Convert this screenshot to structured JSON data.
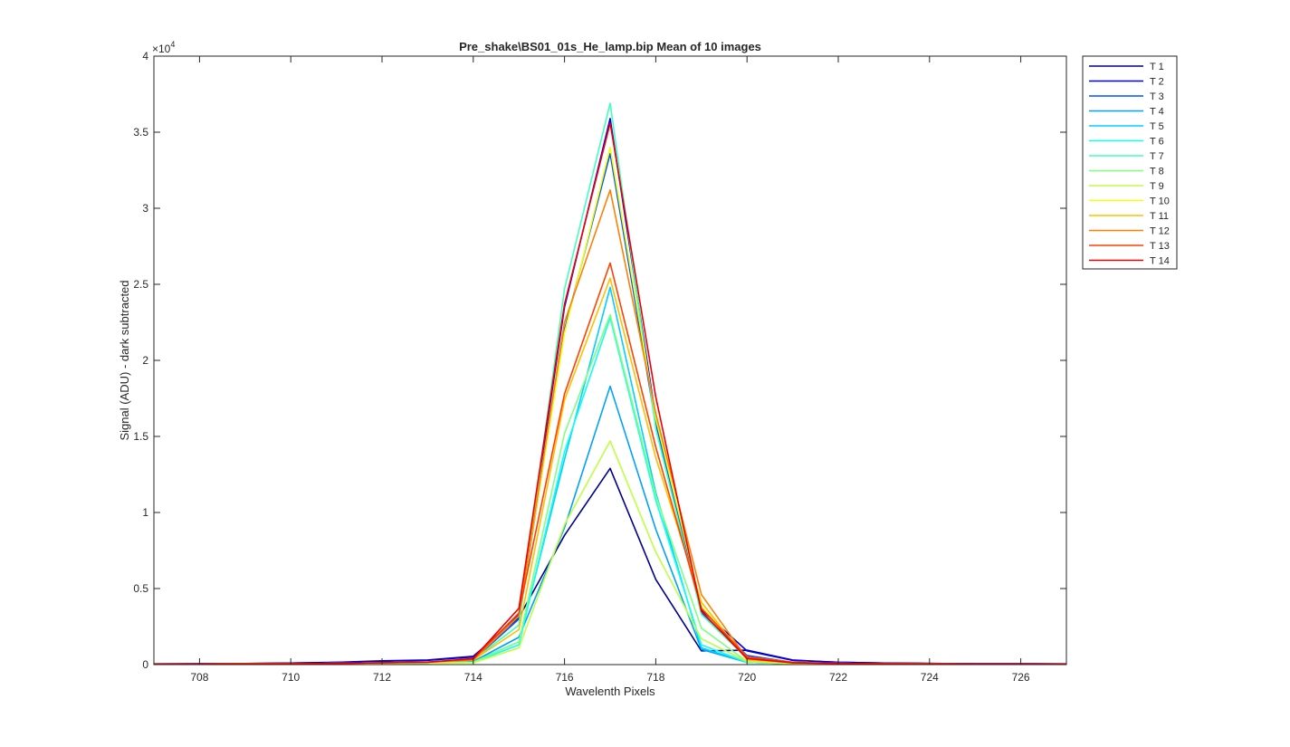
{
  "chart_data": {
    "type": "line",
    "title": "Pre_shake\\BS01_01s_He_lamp.bip  Mean of 10 images",
    "xlabel": "Wavelenth Pixels",
    "ylabel": "Signal (ADU) - dark subtracted",
    "y_exponent_label": "×10",
    "y_exponent_power": "4",
    "xlim": [
      707,
      727
    ],
    "ylim": [
      0,
      40000
    ],
    "x_ticks": [
      708,
      710,
      712,
      714,
      716,
      718,
      720,
      722,
      724,
      726
    ],
    "x_tick_labels": [
      "708",
      "710",
      "712",
      "714",
      "716",
      "718",
      "720",
      "722",
      "724",
      "726"
    ],
    "y_ticks": [
      0,
      5000,
      10000,
      15000,
      20000,
      25000,
      30000,
      35000,
      40000
    ],
    "y_tick_labels": [
      "0",
      "0.5",
      "1",
      "1.5",
      "2",
      "2.5",
      "3",
      "3.5",
      "4"
    ],
    "grid": false,
    "legend_position": "outside-top-right",
    "x": [
      707,
      708,
      709,
      710,
      711,
      712,
      713,
      714,
      715,
      716,
      717,
      718,
      719,
      720,
      721,
      722,
      723,
      724,
      725,
      726,
      727
    ],
    "series": [
      {
        "name": "T 1",
        "color": "#00008F",
        "values": [
          50,
          60,
          70,
          100,
          150,
          250,
          300,
          550,
          3100,
          8500,
          12900,
          5600,
          900,
          950,
          300,
          150,
          100,
          80,
          60,
          60,
          50
        ]
      },
      {
        "name": "T 2",
        "color": "#0000EF",
        "values": [
          50,
          60,
          70,
          100,
          140,
          220,
          280,
          500,
          3300,
          23500,
          35900,
          16200,
          3600,
          900,
          280,
          150,
          100,
          80,
          60,
          60,
          50
        ]
      },
      {
        "name": "T 3",
        "color": "#0050FF",
        "values": [
          30,
          40,
          50,
          60,
          80,
          120,
          160,
          300,
          3000,
          22000,
          33600,
          15800,
          3400,
          600,
          150,
          80,
          60,
          50,
          40,
          40,
          30
        ]
      },
      {
        "name": "T 4",
        "color": "#00A0FF",
        "values": [
          20,
          30,
          40,
          50,
          60,
          80,
          100,
          200,
          1800,
          9000,
          18300,
          8900,
          1000,
          150,
          60,
          40,
          30,
          30,
          20,
          20,
          20
        ]
      },
      {
        "name": "T 5",
        "color": "#00CFFF",
        "values": [
          20,
          30,
          40,
          50,
          60,
          80,
          100,
          180,
          1500,
          13500,
          24800,
          11300,
          1100,
          150,
          60,
          40,
          30,
          30,
          20,
          20,
          20
        ]
      },
      {
        "name": "T 6",
        "color": "#10FFEF",
        "values": [
          20,
          30,
          40,
          50,
          60,
          80,
          100,
          150,
          1300,
          14000,
          22800,
          10800,
          1300,
          150,
          60,
          40,
          30,
          30,
          20,
          20,
          20
        ]
      },
      {
        "name": "T 7",
        "color": "#40FFBF",
        "values": [
          30,
          40,
          50,
          60,
          80,
          120,
          160,
          300,
          2600,
          24700,
          36900,
          15500,
          3300,
          400,
          120,
          80,
          60,
          50,
          40,
          40,
          30
        ]
      },
      {
        "name": "T 8",
        "color": "#80FF80",
        "values": [
          20,
          30,
          40,
          50,
          60,
          80,
          100,
          150,
          1500,
          15200,
          23000,
          11100,
          2400,
          200,
          60,
          40,
          30,
          30,
          20,
          20,
          20
        ]
      },
      {
        "name": "T 9",
        "color": "#BFFF40",
        "values": [
          20,
          30,
          40,
          50,
          60,
          80,
          100,
          120,
          1100,
          9200,
          14700,
          7400,
          1700,
          200,
          60,
          40,
          30,
          30,
          20,
          20,
          20
        ]
      },
      {
        "name": "T 10",
        "color": "#EFFF10",
        "values": [
          30,
          40,
          50,
          60,
          80,
          120,
          160,
          300,
          3200,
          21800,
          34000,
          16200,
          3800,
          500,
          150,
          80,
          60,
          50,
          40,
          40,
          30
        ]
      },
      {
        "name": "T 11",
        "color": "#FFBF00",
        "values": [
          30,
          40,
          50,
          60,
          80,
          120,
          160,
          300,
          2300,
          17400,
          25400,
          13600,
          4100,
          300,
          120,
          80,
          60,
          50,
          40,
          40,
          30
        ]
      },
      {
        "name": "T 12",
        "color": "#FF8000",
        "values": [
          30,
          40,
          50,
          60,
          80,
          120,
          160,
          300,
          3200,
          22500,
          31200,
          16500,
          4600,
          400,
          120,
          80,
          60,
          50,
          40,
          40,
          30
        ]
      },
      {
        "name": "T 13",
        "color": "#FF4000",
        "values": [
          30,
          40,
          50,
          60,
          80,
          120,
          160,
          350,
          3400,
          17800,
          26400,
          14300,
          3700,
          500,
          150,
          80,
          60,
          50,
          40,
          40,
          30
        ]
      },
      {
        "name": "T 14",
        "color": "#EF0000",
        "values": [
          30,
          40,
          50,
          60,
          80,
          120,
          160,
          400,
          3700,
          23700,
          35600,
          17600,
          3500,
          400,
          120,
          80,
          60,
          50,
          40,
          40,
          30
        ]
      }
    ]
  }
}
